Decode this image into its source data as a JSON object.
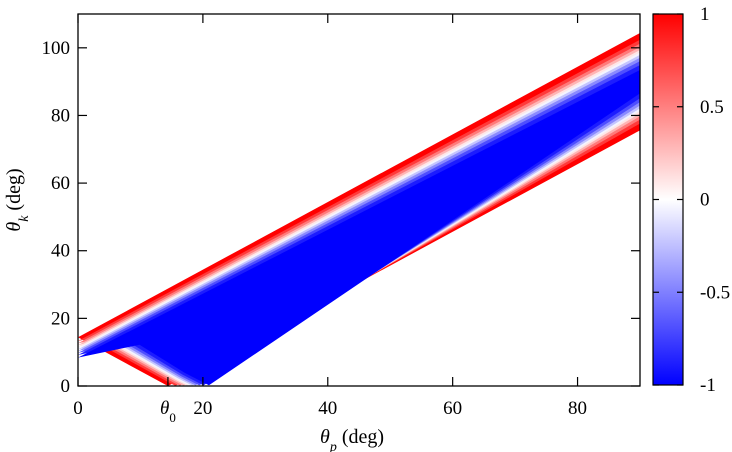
{
  "chart_data": {
    "type": "heatmap",
    "title": "",
    "xlabel": {
      "symbol": "θ",
      "sub": "p",
      "unit": " (deg)"
    },
    "ylabel": {
      "symbol": "θ",
      "sub": "k",
      "unit": " (deg)"
    },
    "xlim": [
      0,
      90
    ],
    "ylim": [
      0,
      110
    ],
    "x_ticks": [
      0,
      20,
      40,
      60,
      80
    ],
    "x_tick_labels": [
      "0",
      "20",
      "40",
      "60",
      "80"
    ],
    "y_ticks": [
      0,
      20,
      40,
      60,
      80,
      100
    ],
    "y_tick_labels": [
      "0",
      "20",
      "40",
      "60",
      "80",
      "100"
    ],
    "annotations": [
      {
        "symbol": "θ",
        "sub": "0",
        "x": 14.4,
        "y": 0
      }
    ],
    "grid": false,
    "region": {
      "description": "band bounded by two lines meeting at the left axis, valued from -1 (center) to 1 (edges)",
      "apex": {
        "x": 0,
        "y": 14.4
      },
      "upper_edge": [
        {
          "x": 0,
          "y": 14.4
        },
        {
          "x": 90,
          "y": 104.4
        }
      ],
      "lower_edge": [
        {
          "x": 14.4,
          "y": 0
        },
        {
          "x": 90,
          "y": 75.6
        }
      ],
      "vertex": {
        "x": 14.4,
        "y": 0
      }
    },
    "colorbar": {
      "min": -1,
      "max": 1,
      "ticks": [
        1,
        0.5,
        0,
        -0.5,
        -1
      ],
      "tick_labels": [
        "1",
        "0.5",
        "0",
        "-0.5",
        "-1"
      ],
      "colors": {
        "low": "#0000ff",
        "mid": "#ffffff",
        "high": "#ff0000"
      }
    }
  }
}
